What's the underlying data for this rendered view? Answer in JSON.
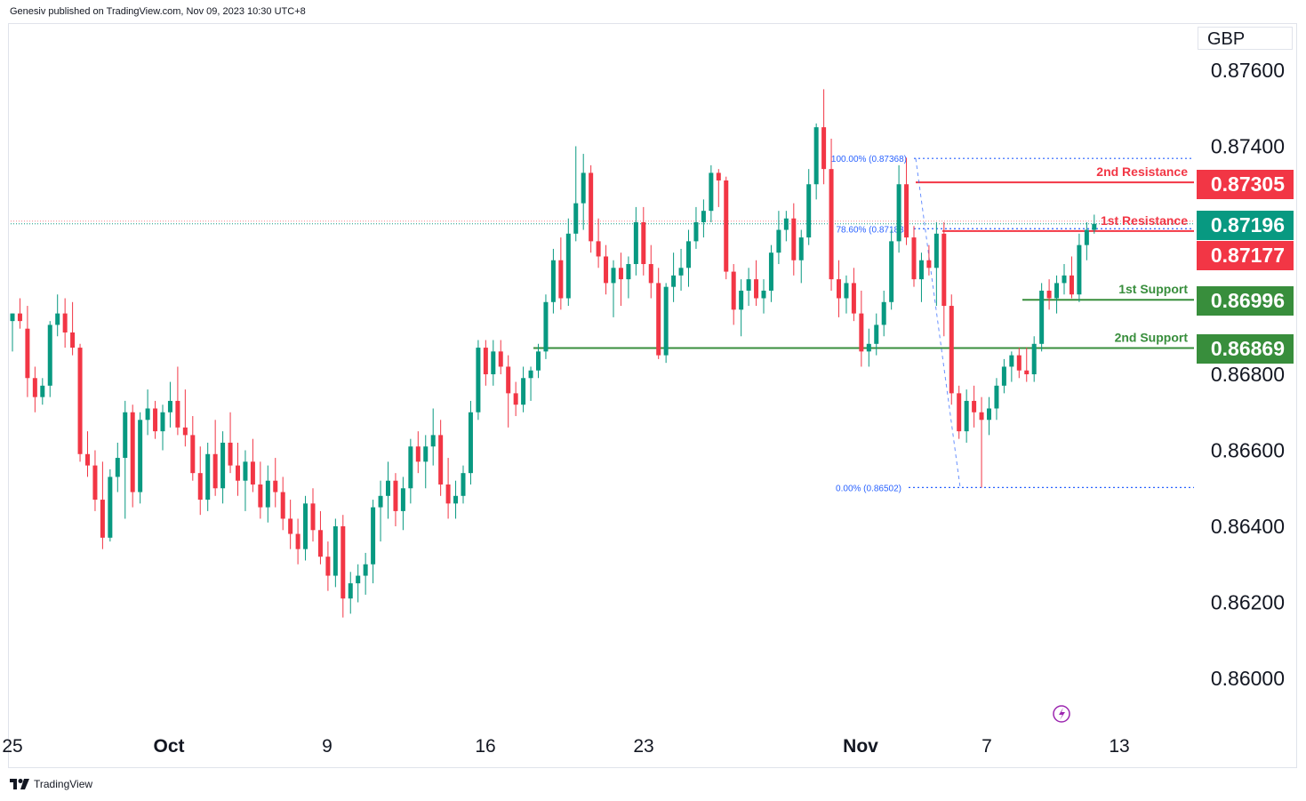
{
  "header": {
    "published": "Genesiv published on TradingView.com, Nov 09, 2023 10:30 UTC+8"
  },
  "footer": {
    "brand": "TradingView"
  },
  "chart_data": {
    "type": "candlestick",
    "instrument_currency": "GBP",
    "y_axis": {
      "ticks": [
        "0.87600",
        "0.87400",
        "0.86800",
        "0.86600",
        "0.86400",
        "0.86200",
        "0.86000"
      ],
      "range": [
        0.859,
        0.8778
      ]
    },
    "x_axis": {
      "ticks": [
        "25",
        "Oct",
        "9",
        "16",
        "23",
        "Nov",
        "7",
        "13"
      ]
    },
    "price_labels": [
      {
        "value": "0.87305",
        "color": "#f23645"
      },
      {
        "value": "0.87196",
        "color": "#089981"
      },
      {
        "value": "0.87177",
        "color": "#f23645"
      },
      {
        "value": "0.86996",
        "color": "#388e3c"
      },
      {
        "value": "0.86869",
        "color": "#388e3c"
      }
    ],
    "levels": [
      {
        "name": "2nd Resistance",
        "value": 0.87305,
        "color": "#f23645"
      },
      {
        "name": "1st Resistance",
        "value": 0.87177,
        "color": "#f23645"
      },
      {
        "name": "1st Support",
        "value": 0.86996,
        "color": "#388e3c"
      },
      {
        "name": "2nd Support",
        "value": 0.86869,
        "color": "#388e3c"
      }
    ],
    "fibonacci": [
      {
        "label": "100.00% (0.87368)",
        "value": 0.87368
      },
      {
        "label": "78.60% (0.87183)",
        "value": 0.87183
      },
      {
        "label": "0.00% (0.86502)",
        "value": 0.86502
      }
    ],
    "last_price": 0.87196,
    "colors": {
      "up": "#089981",
      "down": "#f23645"
    },
    "candles": [
      {
        "o": 0.8694,
        "h": 0.8696,
        "l": 0.8686,
        "c": 0.8696
      },
      {
        "o": 0.8696,
        "h": 0.87,
        "l": 0.8692,
        "c": 0.8694
      },
      {
        "o": 0.8692,
        "h": 0.8698,
        "l": 0.8674,
        "c": 0.8679
      },
      {
        "o": 0.8679,
        "h": 0.8682,
        "l": 0.867,
        "c": 0.8674
      },
      {
        "o": 0.8674,
        "h": 0.8679,
        "l": 0.8672,
        "c": 0.8677
      },
      {
        "o": 0.8677,
        "h": 0.8694,
        "l": 0.8674,
        "c": 0.8693
      },
      {
        "o": 0.8693,
        "h": 0.8701,
        "l": 0.869,
        "c": 0.8696
      },
      {
        "o": 0.8696,
        "h": 0.87,
        "l": 0.8687,
        "c": 0.8691
      },
      {
        "o": 0.8691,
        "h": 0.8699,
        "l": 0.8685,
        "c": 0.8687
      },
      {
        "o": 0.8687,
        "h": 0.8688,
        "l": 0.8657,
        "c": 0.8659
      },
      {
        "o": 0.8659,
        "h": 0.8665,
        "l": 0.8653,
        "c": 0.8656
      },
      {
        "o": 0.8656,
        "h": 0.866,
        "l": 0.8644,
        "c": 0.8647
      },
      {
        "o": 0.8647,
        "h": 0.8657,
        "l": 0.8634,
        "c": 0.8637
      },
      {
        "o": 0.8637,
        "h": 0.8655,
        "l": 0.8636,
        "c": 0.8653
      },
      {
        "o": 0.8653,
        "h": 0.8662,
        "l": 0.8649,
        "c": 0.8658
      },
      {
        "o": 0.8658,
        "h": 0.8673,
        "l": 0.8642,
        "c": 0.867
      },
      {
        "o": 0.867,
        "h": 0.8672,
        "l": 0.8645,
        "c": 0.8649
      },
      {
        "o": 0.8649,
        "h": 0.867,
        "l": 0.8646,
        "c": 0.8668
      },
      {
        "o": 0.8668,
        "h": 0.8676,
        "l": 0.8664,
        "c": 0.8671
      },
      {
        "o": 0.8671,
        "h": 0.8673,
        "l": 0.8663,
        "c": 0.8665
      },
      {
        "o": 0.8665,
        "h": 0.8672,
        "l": 0.866,
        "c": 0.867
      },
      {
        "o": 0.867,
        "h": 0.8678,
        "l": 0.8666,
        "c": 0.8673
      },
      {
        "o": 0.8673,
        "h": 0.8682,
        "l": 0.8664,
        "c": 0.8666
      },
      {
        "o": 0.8666,
        "h": 0.8676,
        "l": 0.8661,
        "c": 0.8664
      },
      {
        "o": 0.8664,
        "h": 0.8669,
        "l": 0.8652,
        "c": 0.8654
      },
      {
        "o": 0.8654,
        "h": 0.8661,
        "l": 0.8643,
        "c": 0.8647
      },
      {
        "o": 0.8647,
        "h": 0.8662,
        "l": 0.8644,
        "c": 0.8659
      },
      {
        "o": 0.8659,
        "h": 0.8668,
        "l": 0.8648,
        "c": 0.865
      },
      {
        "o": 0.865,
        "h": 0.8665,
        "l": 0.8646,
        "c": 0.8662
      },
      {
        "o": 0.8662,
        "h": 0.867,
        "l": 0.8654,
        "c": 0.8656
      },
      {
        "o": 0.8656,
        "h": 0.8662,
        "l": 0.8648,
        "c": 0.8652
      },
      {
        "o": 0.8652,
        "h": 0.866,
        "l": 0.8644,
        "c": 0.8657
      },
      {
        "o": 0.8657,
        "h": 0.8663,
        "l": 0.8649,
        "c": 0.8651
      },
      {
        "o": 0.8651,
        "h": 0.8657,
        "l": 0.8642,
        "c": 0.8645
      },
      {
        "o": 0.8645,
        "h": 0.8656,
        "l": 0.8641,
        "c": 0.8652
      },
      {
        "o": 0.8652,
        "h": 0.8658,
        "l": 0.8645,
        "c": 0.8649
      },
      {
        "o": 0.8649,
        "h": 0.8653,
        "l": 0.8639,
        "c": 0.8642
      },
      {
        "o": 0.8642,
        "h": 0.8647,
        "l": 0.8634,
        "c": 0.8638
      },
      {
        "o": 0.8638,
        "h": 0.8642,
        "l": 0.863,
        "c": 0.8634
      },
      {
        "o": 0.8634,
        "h": 0.8648,
        "l": 0.8631,
        "c": 0.8646
      },
      {
        "o": 0.8646,
        "h": 0.865,
        "l": 0.8636,
        "c": 0.8639
      },
      {
        "o": 0.8639,
        "h": 0.8644,
        "l": 0.863,
        "c": 0.8632
      },
      {
        "o": 0.8632,
        "h": 0.8636,
        "l": 0.8623,
        "c": 0.8627
      },
      {
        "o": 0.8627,
        "h": 0.8642,
        "l": 0.8624,
        "c": 0.864
      },
      {
        "o": 0.864,
        "h": 0.8643,
        "l": 0.8616,
        "c": 0.8621
      },
      {
        "o": 0.8621,
        "h": 0.8628,
        "l": 0.8617,
        "c": 0.8625
      },
      {
        "o": 0.8625,
        "h": 0.863,
        "l": 0.862,
        "c": 0.8627
      },
      {
        "o": 0.8627,
        "h": 0.8633,
        "l": 0.8622,
        "c": 0.863
      },
      {
        "o": 0.863,
        "h": 0.8647,
        "l": 0.8625,
        "c": 0.8645
      },
      {
        "o": 0.8645,
        "h": 0.8652,
        "l": 0.8636,
        "c": 0.8648
      },
      {
        "o": 0.8648,
        "h": 0.8657,
        "l": 0.8642,
        "c": 0.8652
      },
      {
        "o": 0.8652,
        "h": 0.8654,
        "l": 0.864,
        "c": 0.8644
      },
      {
        "o": 0.8644,
        "h": 0.8653,
        "l": 0.8639,
        "c": 0.865
      },
      {
        "o": 0.865,
        "h": 0.8663,
        "l": 0.8646,
        "c": 0.8661
      },
      {
        "o": 0.8661,
        "h": 0.8665,
        "l": 0.8654,
        "c": 0.8657
      },
      {
        "o": 0.8657,
        "h": 0.8664,
        "l": 0.865,
        "c": 0.8661
      },
      {
        "o": 0.8661,
        "h": 0.8671,
        "l": 0.8656,
        "c": 0.8664
      },
      {
        "o": 0.8664,
        "h": 0.8668,
        "l": 0.8648,
        "c": 0.8651
      },
      {
        "o": 0.8651,
        "h": 0.8658,
        "l": 0.8642,
        "c": 0.8646
      },
      {
        "o": 0.8646,
        "h": 0.8652,
        "l": 0.8642,
        "c": 0.8648
      },
      {
        "o": 0.8648,
        "h": 0.8656,
        "l": 0.8646,
        "c": 0.8654
      },
      {
        "o": 0.8654,
        "h": 0.8673,
        "l": 0.8651,
        "c": 0.867
      },
      {
        "o": 0.867,
        "h": 0.8689,
        "l": 0.8668,
        "c": 0.8687
      },
      {
        "o": 0.8687,
        "h": 0.8689,
        "l": 0.8677,
        "c": 0.868
      },
      {
        "o": 0.868,
        "h": 0.8689,
        "l": 0.8677,
        "c": 0.8686
      },
      {
        "o": 0.8686,
        "h": 0.8689,
        "l": 0.868,
        "c": 0.8682
      },
      {
        "o": 0.8682,
        "h": 0.8685,
        "l": 0.8666,
        "c": 0.8675
      },
      {
        "o": 0.8675,
        "h": 0.8678,
        "l": 0.8669,
        "c": 0.8672
      },
      {
        "o": 0.8672,
        "h": 0.8682,
        "l": 0.867,
        "c": 0.8679
      },
      {
        "o": 0.8679,
        "h": 0.8682,
        "l": 0.8673,
        "c": 0.8681
      },
      {
        "o": 0.8681,
        "h": 0.8688,
        "l": 0.8679,
        "c": 0.8686
      },
      {
        "o": 0.8686,
        "h": 0.8701,
        "l": 0.8684,
        "c": 0.8699
      },
      {
        "o": 0.8699,
        "h": 0.8713,
        "l": 0.8696,
        "c": 0.871
      },
      {
        "o": 0.871,
        "h": 0.8716,
        "l": 0.8697,
        "c": 0.87
      },
      {
        "o": 0.87,
        "h": 0.8721,
        "l": 0.8698,
        "c": 0.8717
      },
      {
        "o": 0.8717,
        "h": 0.874,
        "l": 0.8715,
        "c": 0.8725
      },
      {
        "o": 0.8725,
        "h": 0.8738,
        "l": 0.8718,
        "c": 0.8733
      },
      {
        "o": 0.8733,
        "h": 0.8735,
        "l": 0.8712,
        "c": 0.8715
      },
      {
        "o": 0.8715,
        "h": 0.8721,
        "l": 0.8708,
        "c": 0.8711
      },
      {
        "o": 0.8711,
        "h": 0.8714,
        "l": 0.8701,
        "c": 0.8704
      },
      {
        "o": 0.8704,
        "h": 0.871,
        "l": 0.8695,
        "c": 0.8708
      },
      {
        "o": 0.8708,
        "h": 0.8712,
        "l": 0.8698,
        "c": 0.8705
      },
      {
        "o": 0.8705,
        "h": 0.8711,
        "l": 0.87,
        "c": 0.8709
      },
      {
        "o": 0.8709,
        "h": 0.8724,
        "l": 0.8706,
        "c": 0.872
      },
      {
        "o": 0.872,
        "h": 0.8724,
        "l": 0.8706,
        "c": 0.8709
      },
      {
        "o": 0.8709,
        "h": 0.8714,
        "l": 0.87,
        "c": 0.8704
      },
      {
        "o": 0.8704,
        "h": 0.8708,
        "l": 0.8684,
        "c": 0.8685
      },
      {
        "o": 0.8685,
        "h": 0.8704,
        "l": 0.8683,
        "c": 0.8703
      },
      {
        "o": 0.8703,
        "h": 0.8712,
        "l": 0.8699,
        "c": 0.8706
      },
      {
        "o": 0.8706,
        "h": 0.8713,
        "l": 0.8702,
        "c": 0.8708
      },
      {
        "o": 0.8708,
        "h": 0.8718,
        "l": 0.8703,
        "c": 0.8715
      },
      {
        "o": 0.8715,
        "h": 0.8724,
        "l": 0.8713,
        "c": 0.872
      },
      {
        "o": 0.872,
        "h": 0.8726,
        "l": 0.8716,
        "c": 0.8723
      },
      {
        "o": 0.8723,
        "h": 0.8735,
        "l": 0.872,
        "c": 0.8733
      },
      {
        "o": 0.8733,
        "h": 0.8734,
        "l": 0.8724,
        "c": 0.8731
      },
      {
        "o": 0.8731,
        "h": 0.8732,
        "l": 0.8705,
        "c": 0.8707
      },
      {
        "o": 0.8707,
        "h": 0.8709,
        "l": 0.8693,
        "c": 0.8697
      },
      {
        "o": 0.8697,
        "h": 0.8705,
        "l": 0.869,
        "c": 0.8702
      },
      {
        "o": 0.8702,
        "h": 0.8708,
        "l": 0.8698,
        "c": 0.8705
      },
      {
        "o": 0.8705,
        "h": 0.871,
        "l": 0.8698,
        "c": 0.87
      },
      {
        "o": 0.87,
        "h": 0.8705,
        "l": 0.8696,
        "c": 0.8702
      },
      {
        "o": 0.8702,
        "h": 0.8714,
        "l": 0.8699,
        "c": 0.8712
      },
      {
        "o": 0.8712,
        "h": 0.8723,
        "l": 0.8709,
        "c": 0.8718
      },
      {
        "o": 0.8718,
        "h": 0.8723,
        "l": 0.8715,
        "c": 0.8721
      },
      {
        "o": 0.8721,
        "h": 0.8725,
        "l": 0.8706,
        "c": 0.871
      },
      {
        "o": 0.871,
        "h": 0.8718,
        "l": 0.8704,
        "c": 0.8716
      },
      {
        "o": 0.8716,
        "h": 0.8734,
        "l": 0.8714,
        "c": 0.873
      },
      {
        "o": 0.873,
        "h": 0.8746,
        "l": 0.8726,
        "c": 0.8745
      },
      {
        "o": 0.8745,
        "h": 0.8755,
        "l": 0.873,
        "c": 0.8734
      },
      {
        "o": 0.8734,
        "h": 0.8742,
        "l": 0.8702,
        "c": 0.8705
      },
      {
        "o": 0.8705,
        "h": 0.871,
        "l": 0.8695,
        "c": 0.87
      },
      {
        "o": 0.87,
        "h": 0.8706,
        "l": 0.8696,
        "c": 0.8704
      },
      {
        "o": 0.8704,
        "h": 0.8708,
        "l": 0.8694,
        "c": 0.8696
      },
      {
        "o": 0.8696,
        "h": 0.8702,
        "l": 0.8682,
        "c": 0.8686
      },
      {
        "o": 0.8686,
        "h": 0.8692,
        "l": 0.8682,
        "c": 0.8688
      },
      {
        "o": 0.8688,
        "h": 0.8696,
        "l": 0.8685,
        "c": 0.8693
      },
      {
        "o": 0.8693,
        "h": 0.8702,
        "l": 0.869,
        "c": 0.8699
      },
      {
        "o": 0.8699,
        "h": 0.8718,
        "l": 0.8697,
        "c": 0.8715
      },
      {
        "o": 0.8715,
        "h": 0.8735,
        "l": 0.8712,
        "c": 0.873
      },
      {
        "o": 0.873,
        "h": 0.8737,
        "l": 0.8714,
        "c": 0.8716
      },
      {
        "o": 0.8716,
        "h": 0.8719,
        "l": 0.8703,
        "c": 0.8705
      },
      {
        "o": 0.8705,
        "h": 0.8712,
        "l": 0.8699,
        "c": 0.871
      },
      {
        "o": 0.871,
        "h": 0.8714,
        "l": 0.8706,
        "c": 0.8708
      },
      {
        "o": 0.8708,
        "h": 0.872,
        "l": 0.8698,
        "c": 0.8717
      },
      {
        "o": 0.8717,
        "h": 0.872,
        "l": 0.869,
        "c": 0.8698
      },
      {
        "o": 0.8698,
        "h": 0.8701,
        "l": 0.8672,
        "c": 0.8675
      },
      {
        "o": 0.8675,
        "h": 0.8677,
        "l": 0.8663,
        "c": 0.8665
      },
      {
        "o": 0.8665,
        "h": 0.8676,
        "l": 0.8662,
        "c": 0.8673
      },
      {
        "o": 0.8673,
        "h": 0.8677,
        "l": 0.8666,
        "c": 0.867
      },
      {
        "o": 0.867,
        "h": 0.8674,
        "l": 0.86502,
        "c": 0.8668
      },
      {
        "o": 0.8668,
        "h": 0.8674,
        "l": 0.8664,
        "c": 0.8671
      },
      {
        "o": 0.8671,
        "h": 0.8679,
        "l": 0.8668,
        "c": 0.8677
      },
      {
        "o": 0.8677,
        "h": 0.8684,
        "l": 0.8675,
        "c": 0.8682
      },
      {
        "o": 0.8682,
        "h": 0.8686,
        "l": 0.8678,
        "c": 0.8685
      },
      {
        "o": 0.8685,
        "h": 0.8687,
        "l": 0.8679,
        "c": 0.8681
      },
      {
        "o": 0.8681,
        "h": 0.8687,
        "l": 0.8678,
        "c": 0.868
      },
      {
        "o": 0.868,
        "h": 0.869,
        "l": 0.8678,
        "c": 0.8688
      },
      {
        "o": 0.8688,
        "h": 0.8704,
        "l": 0.8686,
        "c": 0.8702
      },
      {
        "o": 0.8702,
        "h": 0.8705,
        "l": 0.8697,
        "c": 0.87
      },
      {
        "o": 0.87,
        "h": 0.8706,
        "l": 0.8696,
        "c": 0.8704
      },
      {
        "o": 0.8704,
        "h": 0.8709,
        "l": 0.8701,
        "c": 0.8706
      },
      {
        "o": 0.8706,
        "h": 0.8711,
        "l": 0.87,
        "c": 0.8701
      },
      {
        "o": 0.8701,
        "h": 0.8717,
        "l": 0.8699,
        "c": 0.8714
      },
      {
        "o": 0.8714,
        "h": 0.872,
        "l": 0.871,
        "c": 0.8718
      },
      {
        "o": 0.8718,
        "h": 0.8722,
        "l": 0.8717,
        "c": 0.87196
      }
    ]
  }
}
